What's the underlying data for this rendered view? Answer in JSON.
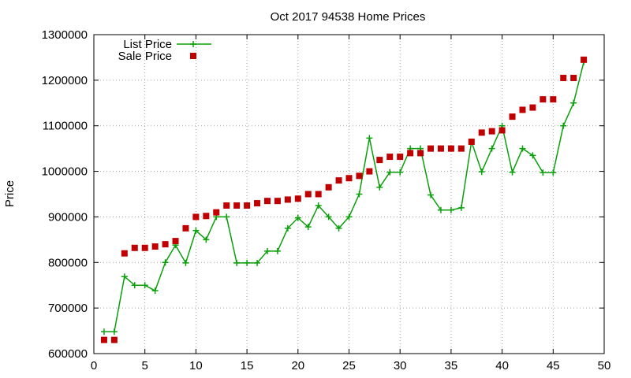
{
  "chart_data": {
    "type": "line",
    "title": "Oct 2017 94538 Home Prices",
    "xlabel": "",
    "ylabel": "Price",
    "xlim": [
      0,
      50
    ],
    "ylim": [
      600000,
      1300000
    ],
    "xticks": [
      0,
      5,
      10,
      15,
      20,
      25,
      30,
      35,
      40,
      45,
      50
    ],
    "yticks": [
      600000,
      700000,
      800000,
      900000,
      1000000,
      1100000,
      1200000,
      1300000
    ],
    "grid": true,
    "legend_position": "top-left",
    "series": [
      {
        "name": "List Price",
        "style": "line-plus",
        "color": "#0aa00a",
        "x": [
          1,
          2,
          3,
          4,
          5,
          6,
          7,
          8,
          9,
          10,
          11,
          12,
          13,
          14,
          15,
          16,
          17,
          18,
          19,
          20,
          21,
          22,
          23,
          24,
          25,
          26,
          27,
          28,
          29,
          30,
          31,
          32,
          33,
          34,
          35,
          36,
          37,
          38,
          39,
          40,
          41,
          42,
          43,
          44,
          45,
          46,
          47,
          48
        ],
        "y": [
          648000,
          648000,
          769000,
          750000,
          750000,
          738000,
          800000,
          838000,
          799000,
          870000,
          850000,
          900000,
          900000,
          799000,
          799000,
          799000,
          825000,
          825000,
          875000,
          898000,
          878000,
          925000,
          900000,
          875000,
          900000,
          950000,
          1073000,
          965000,
          998000,
          998000,
          1050000,
          1050000,
          948000,
          915000,
          915000,
          920000,
          1065000,
          999000,
          1050000,
          1100000,
          998000,
          1050000,
          1035000,
          997000,
          997000,
          1100000,
          1150000,
          1240000
        ]
      },
      {
        "name": "Sale Price",
        "style": "points-square",
        "color": "#c00000",
        "x": [
          1,
          2,
          3,
          4,
          5,
          6,
          7,
          8,
          9,
          10,
          11,
          12,
          13,
          14,
          15,
          16,
          17,
          18,
          19,
          20,
          21,
          22,
          23,
          24,
          25,
          26,
          27,
          28,
          29,
          30,
          31,
          32,
          33,
          34,
          35,
          36,
          37,
          38,
          39,
          40,
          41,
          42,
          43,
          44,
          45,
          46,
          47,
          48
        ],
        "y": [
          630000,
          630000,
          820000,
          832000,
          832000,
          835000,
          840000,
          847000,
          875000,
          900000,
          902000,
          910000,
          925000,
          925000,
          925000,
          930000,
          935000,
          935000,
          938000,
          940000,
          950000,
          950000,
          965000,
          980000,
          985000,
          990000,
          1000000,
          1025000,
          1032000,
          1032000,
          1040000,
          1040000,
          1050000,
          1050000,
          1050000,
          1050000,
          1065000,
          1085000,
          1088000,
          1090000,
          1120000,
          1135000,
          1140000,
          1158000,
          1158000,
          1205000,
          1205000,
          1245000
        ]
      }
    ]
  }
}
